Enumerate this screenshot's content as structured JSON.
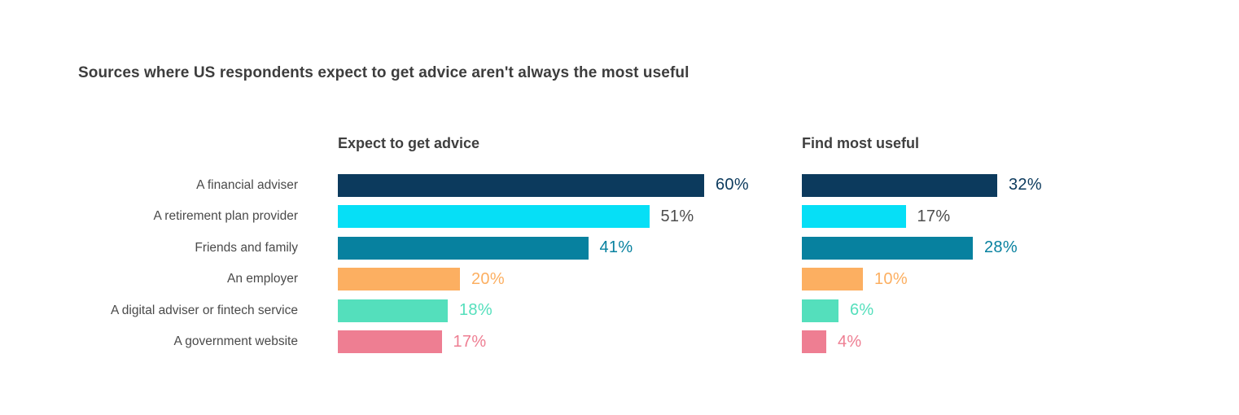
{
  "title": "Sources where US respondents expect to get advice aren't always the most useful",
  "chart_data": {
    "type": "bar",
    "orientation": "horizontal",
    "title": "Sources where US respondents expect to get advice aren't always the most useful",
    "categories": [
      "A financial adviser",
      "A retirement plan provider",
      "Friends and family",
      "An employer",
      "A digital adviser or fintech service",
      "A government website"
    ],
    "series": [
      {
        "name": "Expect to get advice",
        "values": [
          60,
          51,
          41,
          20,
          18,
          17
        ]
      },
      {
        "name": "Find most useful",
        "values": [
          32,
          17,
          28,
          10,
          6,
          4
        ]
      }
    ],
    "value_suffix": "%",
    "xlim": [
      0,
      62
    ],
    "grid": false,
    "legend_position": "panel headers above each bar group",
    "bar_colors": [
      "#0c3a5d",
      "#06dff6",
      "#07819f",
      "#fcaf61",
      "#54dfbc",
      "#ee7e92"
    ],
    "value_label_colors": [
      "#0c3a5d",
      "#4d4d4d",
      "#07819f",
      "#fcaf61",
      "#54dfbc",
      "#ee7e92"
    ]
  }
}
